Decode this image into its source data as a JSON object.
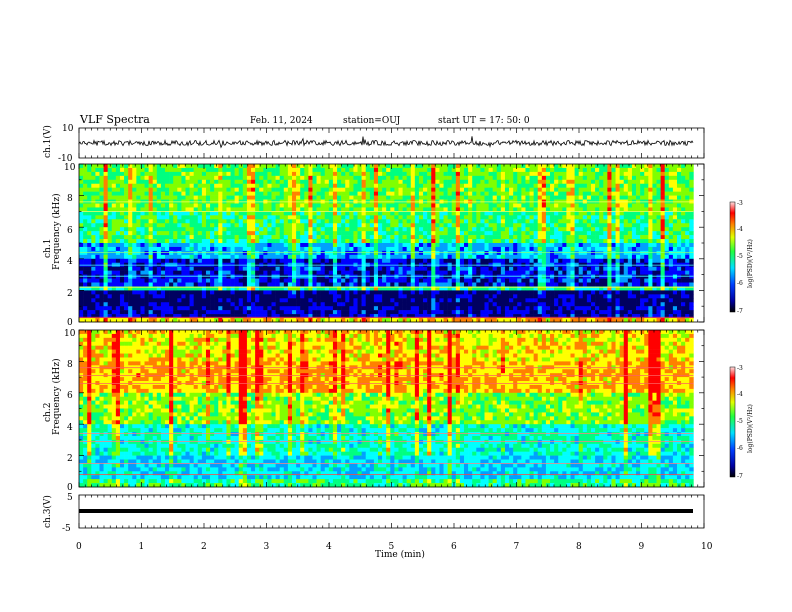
{
  "header": {
    "title": "VLF Spectra",
    "date": "Feb. 11, 2024",
    "station": "station=OUJ",
    "start": "start  UT  =   17: 50: 0"
  },
  "chart_data": [
    {
      "type": "line",
      "panel": "ch1-waveform",
      "ylabel": "ch.1(V)",
      "ylim": [
        -10,
        10
      ],
      "yticks": [
        "10",
        "-10"
      ],
      "xlim": [
        0,
        10
      ],
      "xticks": [
        "0",
        "1",
        "2",
        "3",
        "4",
        "5",
        "6",
        "7",
        "8",
        "9",
        "10"
      ],
      "xlabel": "Time  (min)",
      "series": [
        {
          "color": "#000000",
          "data_end_min": 9.83,
          "approx_level_v": 0
        }
      ],
      "grid": false
    },
    {
      "type": "heatmap",
      "panel": "ch1-spectrogram",
      "ylabel": "ch.1\nFrequency (kHz)",
      "ylabel_lines": [
        "ch.1",
        "Frequency  (kHz)"
      ],
      "ylim": [
        0,
        10
      ],
      "yticks": [
        "0",
        "2",
        "4",
        "6",
        "8",
        "10"
      ],
      "xlim": [
        0,
        10
      ],
      "data_end_min": 9.83,
      "colorbar": {
        "label": "log(PSD)(V²/Hz)",
        "range": [
          -7,
          -3
        ],
        "ticks": [
          "-3",
          "-4",
          "-5",
          "-6",
          "-7"
        ]
      },
      "bands": [
        {
          "f": [
            0.0,
            0.3
          ],
          "log_psd": -4.0
        },
        {
          "f": [
            0.3,
            1.1
          ],
          "log_psd": -6.6
        },
        {
          "f": [
            1.1,
            2.0
          ],
          "log_psd": -6.8
        },
        {
          "f": [
            2.0,
            2.3
          ],
          "log_psd": -5.2
        },
        {
          "f": [
            2.3,
            4.0
          ],
          "log_psd": -6.4
        },
        {
          "f": [
            4.0,
            5.0
          ],
          "log_psd": -5.8
        },
        {
          "f": [
            5.0,
            7.0
          ],
          "log_psd": -5.0
        },
        {
          "f": [
            7.0,
            10.0
          ],
          "log_psd": -4.7
        }
      ]
    },
    {
      "type": "heatmap",
      "panel": "ch2-spectrogram",
      "ylabel": "ch.2\nFrequency (kHz)",
      "ylabel_lines": [
        "ch.2",
        "Frequency  (kHz)"
      ],
      "ylim": [
        0,
        10
      ],
      "yticks": [
        "0",
        "2",
        "4",
        "6",
        "8",
        "10"
      ],
      "xlim": [
        0,
        10
      ],
      "data_end_min": 9.83,
      "colorbar": {
        "label": "log(PSD)(V²/Hz)",
        "range": [
          -7,
          -3
        ],
        "ticks": [
          "-3",
          "-4",
          "-5",
          "-6",
          "-7"
        ]
      },
      "bands": [
        {
          "f": [
            0.0,
            0.5
          ],
          "log_psd": -5.0
        },
        {
          "f": [
            0.5,
            2.0
          ],
          "log_psd": -5.6
        },
        {
          "f": [
            2.0,
            4.0
          ],
          "log_psd": -5.3
        },
        {
          "f": [
            4.0,
            6.0
          ],
          "log_psd": -4.6
        },
        {
          "f": [
            6.0,
            8.0
          ],
          "log_psd": -3.9
        },
        {
          "f": [
            8.0,
            10.0
          ],
          "log_psd": -4.1
        }
      ]
    },
    {
      "type": "line",
      "panel": "ch3-waveform",
      "ylabel": "ch.3(V)",
      "ylim": [
        -5,
        5
      ],
      "yticks": [
        "5",
        "-5"
      ],
      "xlim": [
        0,
        10
      ],
      "series": [
        {
          "color": "#000000",
          "data_end_min": 9.83,
          "approx_level_v": -1.5
        }
      ],
      "grid": false
    }
  ],
  "colors": {
    "colormap": [
      "#000060",
      "#0000ff",
      "#00a0ff",
      "#00ffff",
      "#00ff80",
      "#80ff00",
      "#ffff00",
      "#ff8000",
      "#ff0000",
      "#ffffff"
    ]
  }
}
